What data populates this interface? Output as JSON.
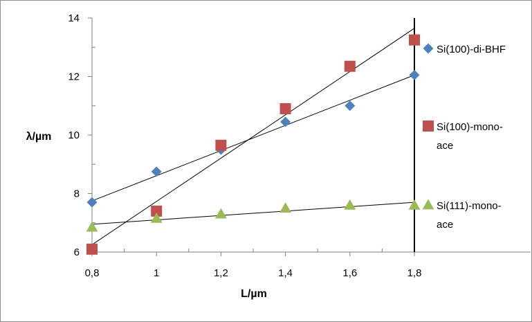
{
  "chart_data": {
    "type": "scatter",
    "xlabel": "L/µm",
    "ylabel": "λ/µm",
    "xlim": [
      0.8,
      1.8
    ],
    "ylim": [
      6,
      14
    ],
    "x_ticks": [
      "0,8",
      "1",
      "1,2",
      "1,4",
      "1,6",
      "1,8"
    ],
    "y_ticks": [
      "6",
      "8",
      "10",
      "12",
      "14"
    ],
    "grid": false,
    "legend_position": "right",
    "series": [
      {
        "name": "Si(100)-di-BHF",
        "marker": "diamond",
        "color": "#4f81bd",
        "x": [
          0.8,
          1.0,
          1.2,
          1.4,
          1.6,
          1.8
        ],
        "y": [
          7.7,
          8.75,
          9.5,
          10.45,
          11.0,
          12.05
        ],
        "trendline": [
          [
            0.8,
            7.75
          ],
          [
            1.8,
            12.05
          ]
        ]
      },
      {
        "name": "Si(100)-mono-ace",
        "marker": "square",
        "color": "#c0504d",
        "x": [
          0.8,
          1.0,
          1.2,
          1.4,
          1.6,
          1.8
        ],
        "y": [
          6.1,
          7.4,
          9.65,
          10.9,
          12.35,
          13.25
        ],
        "trendline": [
          [
            0.8,
            6.25
          ],
          [
            1.8,
            13.65
          ]
        ]
      },
      {
        "name": "Si(111)-mono-ace",
        "marker": "triangle",
        "color": "#9bbb59",
        "x": [
          0.8,
          1.0,
          1.2,
          1.4,
          1.6,
          1.8
        ],
        "y": [
          6.85,
          7.15,
          7.3,
          7.5,
          7.6,
          7.6
        ],
        "trendline": [
          [
            0.8,
            6.95
          ],
          [
            1.8,
            7.7
          ]
        ]
      }
    ],
    "legend_labels": [
      [
        "Si(100)-di-BHF"
      ],
      [
        "Si(100)-mono-",
        "ace"
      ],
      [
        "Si(111)-mono-",
        "ace"
      ]
    ]
  }
}
